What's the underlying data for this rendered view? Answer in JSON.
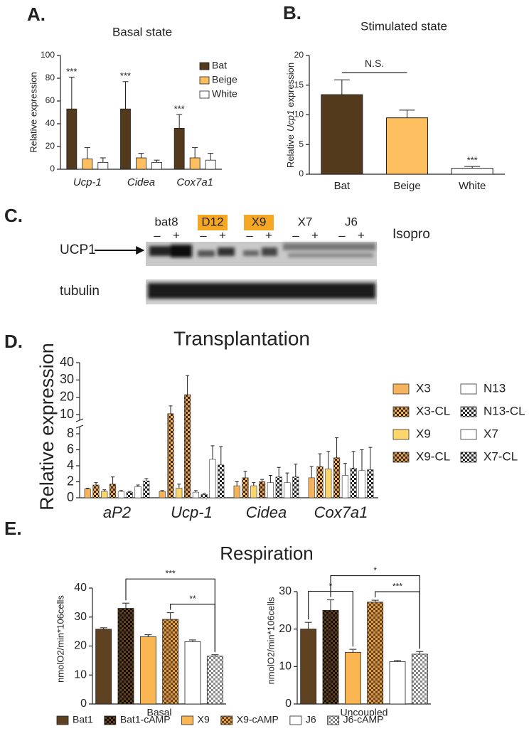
{
  "panel_labels": [
    "A.",
    "B.",
    "C.",
    "D.",
    "E."
  ],
  "blot": {
    "lanes": [
      "bat8",
      "D12",
      "X9",
      "X7",
      "J6"
    ],
    "highlight_color": "#f5a623",
    "highlighted": [
      false,
      true,
      true,
      false,
      false
    ],
    "signs": [
      "–",
      "+"
    ],
    "treatment": "Isopro",
    "rows": [
      "UCP1",
      "tubulin"
    ]
  },
  "chart_data": [
    {
      "type": "bar",
      "title": "Basal state",
      "ylabel": "Relative expression",
      "categories": [
        "Ucp-1",
        "Cidea",
        "Cox7a1"
      ],
      "category_style": "italic",
      "ylim": [
        0,
        100
      ],
      "yticks": [
        0,
        20,
        40,
        60,
        80,
        100
      ],
      "legend": "top-right",
      "series": [
        {
          "name": "Bat",
          "color": "#543a1c",
          "values": [
            53,
            53,
            36
          ],
          "errors": [
            28,
            24,
            12
          ],
          "annotations": [
            "***",
            "***",
            "***"
          ]
        },
        {
          "name": "Beige",
          "color": "#fdbf5f",
          "values": [
            9,
            10,
            10
          ],
          "errors": [
            10,
            4,
            9
          ]
        },
        {
          "name": "White",
          "color": "#ffffff",
          "values": [
            6,
            6,
            8
          ],
          "errors": [
            4,
            2,
            6
          ]
        }
      ]
    },
    {
      "type": "bar",
      "title": "Stimulated state",
      "ylabel": [
        "Relative",
        "Ucp1",
        "expression"
      ],
      "ylabel_italic": 1,
      "categories": [
        "Bat",
        "Beige",
        "White"
      ],
      "colors": [
        "#543a1c",
        "#fdbf5f",
        "#ffffff"
      ],
      "values": [
        13.4,
        9.5,
        1.0
      ],
      "errors": [
        2.5,
        1.3,
        0.3
      ],
      "annotations": [
        null,
        null,
        "***"
      ],
      "ylim": [
        0,
        20
      ],
      "yticks": [
        0,
        5,
        10,
        15,
        20
      ],
      "brackets": [
        {
          "from": 0,
          "to": 1,
          "label": "N.S."
        }
      ]
    },
    {
      "type": "bar",
      "title": "Transplantation",
      "ylabel": "Relative expression",
      "categories": [
        "aP2",
        "Ucp-1",
        "Cidea",
        "Cox7a1"
      ],
      "category_style": "italic",
      "ylim": [
        0,
        40
      ],
      "y_break": [
        8,
        10
      ],
      "yticks": [
        0,
        2,
        4,
        6,
        8,
        10,
        20,
        30,
        40
      ],
      "legend": "right",
      "series": [
        {
          "name": "X3",
          "color": "#f7b35b",
          "values": [
            1.1,
            0.8,
            1.5,
            2.5
          ],
          "errors": [
            0.1,
            0.1,
            0.5,
            1.4
          ]
        },
        {
          "name": "X3-CL",
          "color": "#f7b35b",
          "pattern": "checker",
          "pattern_color": "#3b2a12",
          "values": [
            1.6,
            10.5,
            2.5,
            3.9
          ],
          "errors": [
            0.3,
            4.5,
            0.8,
            1.6
          ]
        },
        {
          "name": "X9",
          "color": "#fdd66b",
          "values": [
            0.8,
            1.2,
            1.5,
            3.6
          ],
          "errors": [
            0.2,
            0.5,
            0.4,
            2.2
          ]
        },
        {
          "name": "X9-CL",
          "color": "#e8a55a",
          "pattern": "checker",
          "pattern_color": "#3b2a12",
          "values": [
            1.7,
            21.5,
            2.0,
            5.0
          ],
          "errors": [
            0.9,
            11,
            0.3,
            2.5
          ]
        },
        {
          "name": "N13",
          "color": "#ffffff",
          "values": [
            0.8,
            0.7,
            1.9,
            2.8
          ],
          "errors": [
            0.1,
            0.2,
            0.9,
            1.5
          ]
        },
        {
          "name": "N13-CL",
          "color": "#ffffff",
          "pattern": "checker",
          "pattern_color": "#222222",
          "values": [
            0.7,
            0.4,
            2.6,
            3.7
          ],
          "errors": [
            0.1,
            0.1,
            1.2,
            2.1
          ]
        },
        {
          "name": "X7",
          "color": "#ffffff",
          "values": [
            1.4,
            4.8,
            1.9,
            3.4
          ],
          "errors": [
            0.2,
            1.7,
            1.2,
            2.6
          ]
        },
        {
          "name": "X7-CL",
          "color": "#ffffff",
          "pattern": "checker",
          "pattern_color": "#222222",
          "values": [
            2.1,
            4.1,
            2.6,
            3.5
          ],
          "errors": [
            0.3,
            2.3,
            1.6,
            2.8
          ]
        }
      ]
    },
    {
      "type": "bar",
      "title": "Respiration",
      "ylabel": "nmolO2/min*106cells",
      "series_names": [
        "Bat1",
        "Bat1-cAMP",
        "X9",
        "X9-cAMP",
        "J6",
        "J6-cAMP"
      ],
      "colors": [
        "#5e4121",
        "#5e4121",
        "#fbb652",
        "#d99a4d",
        "#ffffff",
        "#ffffff"
      ],
      "patterns": [
        null,
        "checker",
        null,
        "checker",
        null,
        "checker"
      ],
      "pattern_colors": [
        null,
        "#1a0f05",
        null,
        "#6b4518",
        null,
        "#888888"
      ],
      "legend": "bottom",
      "subplots": [
        {
          "xlabel": "Basal",
          "values": [
            25.8,
            33,
            23.2,
            29.2,
            21.5,
            16.5
          ],
          "errors": [
            0.5,
            1.8,
            0.7,
            2.3,
            0.6,
            0.5
          ],
          "ylim": [
            0,
            40
          ],
          "yticks": [
            0,
            10,
            20,
            30,
            40
          ],
          "brackets": [
            {
              "from": 1,
              "to": 5,
              "label": "***"
            },
            {
              "from": 3,
              "to": 5,
              "label": "**"
            }
          ]
        },
        {
          "xlabel": "Uncoupled",
          "values": [
            20,
            25,
            13.8,
            27.2,
            11.3,
            13.3
          ],
          "errors": [
            1.8,
            2.8,
            0.8,
            0.5,
            0.3,
            0.7
          ],
          "ylim": [
            0,
            30
          ],
          "yticks": [
            0,
            10,
            20,
            30
          ],
          "brackets": [
            {
              "from": 0,
              "to": 2,
              "label": "*"
            },
            {
              "from": 3,
              "to": 5,
              "label": "***"
            },
            {
              "from": 1,
              "to": 5,
              "label": "*"
            }
          ]
        }
      ]
    }
  ]
}
